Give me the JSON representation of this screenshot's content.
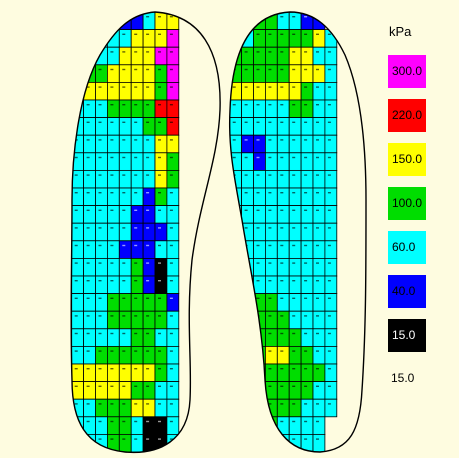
{
  "legend": {
    "unit": "kPa",
    "bands": [
      {
        "label": "300.0",
        "color": "#ff00ff",
        "text_color": "#000000"
      },
      {
        "label": "220.0",
        "color": "#ff0000",
        "text_color": "#000000"
      },
      {
        "label": "150.0",
        "color": "#ffff00",
        "text_color": "#000000"
      },
      {
        "label": "100.0",
        "color": "#00dd00",
        "text_color": "#000000"
      },
      {
        "label": "60.0",
        "color": "#00ffff",
        "text_color": "#000000"
      },
      {
        "label": "40.0",
        "color": "#0000ff",
        "text_color": "#000000"
      },
      {
        "label": "15.0",
        "color": "#000000",
        "text_color": "#ffffff"
      }
    ],
    "min_label": "15.0"
  },
  "background_color": "#fefce0",
  "left_insole": {
    "rows": [
      "......CBBCYY....",
      "....CCCCYYYM....",
      "...GYCCYYYMM....",
      "...GGGYYYYGM....",
      "...YYYYYYYGM....",
      "...CCCGGGGRR....",
      "...CCCCCCGGR....",
      "...CCCCCCCYY....",
      "...CCCCCCCYG....",
      "...CCCCCCCYG....",
      "...CCCCCCBGC....",
      "...CCCCCBBCC....",
      "...CCCCCBBBC....",
      "...CCCCBBBCC....",
      "...CCCCCGBKC....",
      "...CCCCCGBKC....",
      "...CCCGGGGGB....",
      "...CCCGGGGGC....",
      "...CCCCCGGCC....",
      "...CCGGGGGGC....",
      "...YYYYYYYGC....",
      "...YYYYYGGCC....",
      "...CCGGGYYCC....",
      "...CCCGGCKKC....",
      "...CCCGGCKKC...."
    ]
  },
  "right_insole": {
    "rows": [
      "....YGGCCBB.....",
      "....CGGGGGYC....",
      "...GGGGGYYCC....",
      "...GGGGGYYYC....",
      "...YYYYYYGCC....",
      "...CCCCCGGCC....",
      "...CCCCCCCCC....",
      "...CBBCCCCCC....",
      "...CCBCCCCCC....",
      "...CCCCCCCCC....",
      "...CCCCCCCCC....",
      "...CCCCCCCCC....",
      "...CCCCCCCCC....",
      "...CCCCCCCCC....",
      "...CCCCCCCCC....",
      "...CCCCCCCCC....",
      "...CCGGCCCCC....",
      "...CCGGGCCCC....",
      "...CGGGGGCCC....",
      "...CGGYYGGCC....",
      "...CCGGGGGGC....",
      "...CCCGGGGCC....",
      "...CCCGGGCCC....",
      "...CBBGCCCC.....",
      "...CCBCCCCC....."
    ]
  }
}
